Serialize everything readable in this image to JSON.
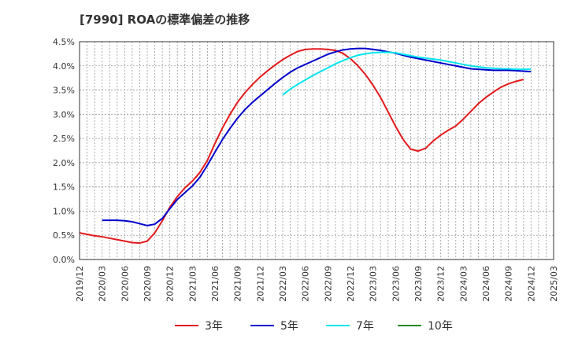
{
  "chart_data": {
    "type": "line",
    "title": "[7990]  ROAの標準偏差の推移",
    "xlabel": "",
    "ylabel": "",
    "ylim": [
      0,
      4.5
    ],
    "yticks": [
      "0.0%",
      "0.5%",
      "1.0%",
      "1.5%",
      "2.0%",
      "2.5%",
      "3.0%",
      "3.5%",
      "4.0%",
      "4.5%"
    ],
    "xticks": [
      "2019/12",
      "2020/03",
      "2020/06",
      "2020/09",
      "2020/12",
      "2021/03",
      "2021/06",
      "2021/09",
      "2021/12",
      "2022/03",
      "2022/06",
      "2022/09",
      "2022/12",
      "2023/03",
      "2023/06",
      "2023/09",
      "2023/12",
      "2024/03",
      "2024/06",
      "2024/09",
      "2024/12",
      "2025/03"
    ],
    "grid": true,
    "legend_position": "bottom",
    "series": [
      {
        "name": "3年",
        "color": "#e31a1c",
        "points": [
          [
            "2019/12",
            0.55
          ],
          [
            "2020/01",
            0.52
          ],
          [
            "2020/02",
            0.49
          ],
          [
            "2020/03",
            0.47
          ],
          [
            "2020/04",
            0.44
          ],
          [
            "2020/05",
            0.41
          ],
          [
            "2020/06",
            0.38
          ],
          [
            "2020/07",
            0.35
          ],
          [
            "2020/08",
            0.34
          ],
          [
            "2020/09",
            0.38
          ],
          [
            "2020/10",
            0.55
          ],
          [
            "2020/11",
            0.8
          ],
          [
            "2020/12",
            1.08
          ],
          [
            "2021/01",
            1.3
          ],
          [
            "2021/02",
            1.48
          ],
          [
            "2021/03",
            1.62
          ],
          [
            "2021/04",
            1.8
          ],
          [
            "2021/05",
            2.05
          ],
          [
            "2021/06",
            2.4
          ],
          [
            "2021/07",
            2.72
          ],
          [
            "2021/08",
            3.0
          ],
          [
            "2021/09",
            3.25
          ],
          [
            "2021/10",
            3.45
          ],
          [
            "2021/11",
            3.62
          ],
          [
            "2021/12",
            3.77
          ],
          [
            "2022/01",
            3.9
          ],
          [
            "2022/02",
            4.02
          ],
          [
            "2022/03",
            4.13
          ],
          [
            "2022/04",
            4.22
          ],
          [
            "2022/05",
            4.3
          ],
          [
            "2022/06",
            4.34
          ],
          [
            "2022/07",
            4.35
          ],
          [
            "2022/08",
            4.35
          ],
          [
            "2022/09",
            4.34
          ],
          [
            "2022/10",
            4.32
          ],
          [
            "2022/11",
            4.26
          ],
          [
            "2022/12",
            4.15
          ],
          [
            "2023/01",
            4.0
          ],
          [
            "2023/02",
            3.82
          ],
          [
            "2023/03",
            3.6
          ],
          [
            "2023/04",
            3.35
          ],
          [
            "2023/05",
            3.05
          ],
          [
            "2023/06",
            2.75
          ],
          [
            "2023/07",
            2.48
          ],
          [
            "2023/08",
            2.28
          ],
          [
            "2023/09",
            2.24
          ],
          [
            "2023/10",
            2.3
          ],
          [
            "2023/11",
            2.45
          ],
          [
            "2023/12",
            2.57
          ],
          [
            "2024/01",
            2.67
          ],
          [
            "2024/02",
            2.76
          ],
          [
            "2024/03",
            2.9
          ],
          [
            "2024/04",
            3.06
          ],
          [
            "2024/05",
            3.22
          ],
          [
            "2024/06",
            3.35
          ],
          [
            "2024/07",
            3.46
          ],
          [
            "2024/08",
            3.56
          ],
          [
            "2024/09",
            3.63
          ],
          [
            "2024/10",
            3.68
          ],
          [
            "2024/11",
            3.72
          ]
        ]
      },
      {
        "name": "5年",
        "color": "#0000cc",
        "points": [
          [
            "2020/03",
            0.81
          ],
          [
            "2020/04",
            0.81
          ],
          [
            "2020/05",
            0.81
          ],
          [
            "2020/06",
            0.8
          ],
          [
            "2020/07",
            0.78
          ],
          [
            "2020/08",
            0.74
          ],
          [
            "2020/09",
            0.7
          ],
          [
            "2020/10",
            0.73
          ],
          [
            "2020/11",
            0.85
          ],
          [
            "2020/12",
            1.05
          ],
          [
            "2021/01",
            1.24
          ],
          [
            "2021/02",
            1.38
          ],
          [
            "2021/03",
            1.52
          ],
          [
            "2021/04",
            1.7
          ],
          [
            "2021/05",
            1.95
          ],
          [
            "2021/06",
            2.22
          ],
          [
            "2021/07",
            2.48
          ],
          [
            "2021/08",
            2.71
          ],
          [
            "2021/09",
            2.92
          ],
          [
            "2021/10",
            3.1
          ],
          [
            "2021/11",
            3.25
          ],
          [
            "2021/12",
            3.38
          ],
          [
            "2022/01",
            3.51
          ],
          [
            "2022/02",
            3.64
          ],
          [
            "2022/03",
            3.76
          ],
          [
            "2022/04",
            3.87
          ],
          [
            "2022/05",
            3.96
          ],
          [
            "2022/06",
            4.03
          ],
          [
            "2022/07",
            4.1
          ],
          [
            "2022/08",
            4.17
          ],
          [
            "2022/09",
            4.24
          ],
          [
            "2022/10",
            4.29
          ],
          [
            "2022/11",
            4.33
          ],
          [
            "2022/12",
            4.35
          ],
          [
            "2023/01",
            4.36
          ],
          [
            "2023/02",
            4.36
          ],
          [
            "2023/03",
            4.34
          ],
          [
            "2023/04",
            4.32
          ],
          [
            "2023/05",
            4.29
          ],
          [
            "2023/06",
            4.26
          ],
          [
            "2023/07",
            4.22
          ],
          [
            "2023/08",
            4.18
          ],
          [
            "2023/09",
            4.15
          ],
          [
            "2023/10",
            4.12
          ],
          [
            "2023/11",
            4.09
          ],
          [
            "2023/12",
            4.06
          ],
          [
            "2024/01",
            4.03
          ],
          [
            "2024/02",
            4.0
          ],
          [
            "2024/03",
            3.97
          ],
          [
            "2024/04",
            3.94
          ],
          [
            "2024/05",
            3.93
          ],
          [
            "2024/06",
            3.92
          ],
          [
            "2024/07",
            3.91
          ],
          [
            "2024/08",
            3.91
          ],
          [
            "2024/09",
            3.91
          ],
          [
            "2024/10",
            3.9
          ],
          [
            "2024/11",
            3.89
          ],
          [
            "2024/12",
            3.88
          ]
        ]
      },
      {
        "name": "7年",
        "color": "#00e5ee",
        "points": [
          [
            "2022/03",
            3.4
          ],
          [
            "2022/04",
            3.52
          ],
          [
            "2022/05",
            3.62
          ],
          [
            "2022/06",
            3.71
          ],
          [
            "2022/07",
            3.8
          ],
          [
            "2022/08",
            3.88
          ],
          [
            "2022/09",
            3.96
          ],
          [
            "2022/10",
            4.04
          ],
          [
            "2022/11",
            4.11
          ],
          [
            "2022/12",
            4.17
          ],
          [
            "2023/01",
            4.22
          ],
          [
            "2023/02",
            4.25
          ],
          [
            "2023/03",
            4.27
          ],
          [
            "2023/04",
            4.28
          ],
          [
            "2023/05",
            4.28
          ],
          [
            "2023/06",
            4.27
          ],
          [
            "2023/07",
            4.24
          ],
          [
            "2023/08",
            4.21
          ],
          [
            "2023/09",
            4.18
          ],
          [
            "2023/10",
            4.16
          ],
          [
            "2023/11",
            4.14
          ],
          [
            "2023/12",
            4.12
          ],
          [
            "2024/01",
            4.09
          ],
          [
            "2024/02",
            4.06
          ],
          [
            "2024/03",
            4.03
          ],
          [
            "2024/04",
            4.0
          ],
          [
            "2024/05",
            3.98
          ],
          [
            "2024/06",
            3.96
          ],
          [
            "2024/07",
            3.95
          ],
          [
            "2024/08",
            3.94
          ],
          [
            "2024/09",
            3.94
          ],
          [
            "2024/10",
            3.93
          ],
          [
            "2024/11",
            3.93
          ],
          [
            "2024/12",
            3.93
          ]
        ]
      },
      {
        "name": "10年",
        "color": "#228b22",
        "points": []
      }
    ]
  }
}
